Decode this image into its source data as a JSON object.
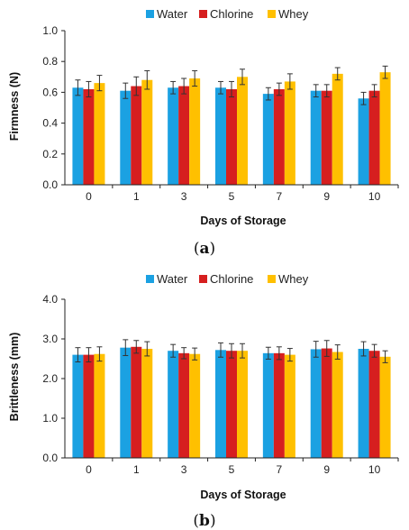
{
  "colors": {
    "water": "#1ba1e2",
    "chlorine": "#d61f1f",
    "whey": "#ffc000"
  },
  "chart_data": [
    {
      "type": "bar",
      "panel": "(a)",
      "categories": [
        "0",
        "1",
        "3",
        "5",
        "7",
        "9",
        "10"
      ],
      "ylabel": "Firmness (N)",
      "xlabel": "Days of Storage",
      "ylim": [
        0.0,
        1.0
      ],
      "yticks": [
        "0.0",
        "0.2",
        "0.4",
        "0.6",
        "0.8",
        "1.0"
      ],
      "grid": false,
      "legend": "top-center",
      "series": [
        {
          "name": "Water",
          "values": [
            0.63,
            0.61,
            0.63,
            0.63,
            0.59,
            0.61,
            0.56
          ],
          "errors": [
            0.05,
            0.05,
            0.04,
            0.04,
            0.04,
            0.04,
            0.04
          ]
        },
        {
          "name": "Chlorine",
          "values": [
            0.62,
            0.64,
            0.64,
            0.62,
            0.62,
            0.61,
            0.61
          ],
          "errors": [
            0.05,
            0.06,
            0.05,
            0.05,
            0.04,
            0.04,
            0.04
          ]
        },
        {
          "name": "Whey",
          "values": [
            0.66,
            0.68,
            0.69,
            0.7,
            0.67,
            0.72,
            0.73
          ],
          "errors": [
            0.05,
            0.06,
            0.05,
            0.05,
            0.05,
            0.04,
            0.04
          ]
        }
      ]
    },
    {
      "type": "bar",
      "panel": "(b)",
      "categories": [
        "0",
        "1",
        "3",
        "5",
        "7",
        "9",
        "10"
      ],
      "ylabel": "Brittleness (mm)",
      "xlabel": "Days of Storage",
      "ylim": [
        0.0,
        4.0
      ],
      "yticks": [
        "0.0",
        "1.0",
        "2.0",
        "3.0",
        "4.0"
      ],
      "grid": false,
      "legend": "top-center",
      "series": [
        {
          "name": "Water",
          "values": [
            2.6,
            2.78,
            2.7,
            2.72,
            2.64,
            2.74,
            2.75
          ],
          "errors": [
            0.18,
            0.2,
            0.16,
            0.18,
            0.15,
            0.2,
            0.18
          ]
        },
        {
          "name": "Chlorine",
          "values": [
            2.6,
            2.8,
            2.64,
            2.7,
            2.64,
            2.76,
            2.7
          ],
          "errors": [
            0.18,
            0.16,
            0.14,
            0.18,
            0.16,
            0.2,
            0.16
          ]
        },
        {
          "name": "Whey",
          "values": [
            2.62,
            2.75,
            2.62,
            2.7,
            2.6,
            2.67,
            2.55
          ],
          "errors": [
            0.18,
            0.18,
            0.15,
            0.18,
            0.16,
            0.18,
            0.15
          ]
        }
      ]
    }
  ]
}
